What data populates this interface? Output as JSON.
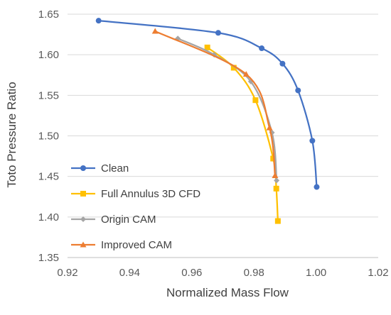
{
  "chart_data": {
    "type": "line",
    "title": "",
    "xlabel": "Normalized Mass Flow",
    "ylabel": "Toto Pressure Ratio",
    "xlim": [
      0.92,
      1.02
    ],
    "ylim": [
      1.35,
      1.65
    ],
    "x_ticks": [
      0.92,
      0.94,
      0.96,
      0.98,
      1.0,
      1.02
    ],
    "y_ticks": [
      1.35,
      1.4,
      1.45,
      1.5,
      1.55,
      1.6,
      1.65
    ],
    "x_tick_labels": [
      "0.92",
      "0.94",
      "0.96",
      "0.98",
      "1.00",
      "1.02"
    ],
    "y_tick_labels": [
      "1.35",
      "1.40",
      "1.45",
      "1.50",
      "1.55",
      "1.60",
      "1.65"
    ],
    "grid": "horizontal",
    "legend_position": "bottom-left",
    "series": [
      {
        "name": "Clean",
        "color": "#4472C4",
        "marker": "circle",
        "x": [
          0.93,
          0.9685,
          0.9825,
          0.9892,
          0.9942,
          0.9988,
          1.0002
        ],
        "y": [
          1.642,
          1.627,
          1.608,
          1.589,
          1.556,
          1.494,
          1.437
        ]
      },
      {
        "name": "Full Annulus 3D CFD",
        "color": "#FFC000",
        "marker": "square",
        "x": [
          0.965,
          0.9735,
          0.9805,
          0.9862,
          0.9872,
          0.9877
        ],
        "y": [
          1.609,
          1.584,
          1.544,
          1.472,
          1.435,
          1.395
        ]
      },
      {
        "name": "Origin CAM",
        "color": "#A5A5A5",
        "marker": "diamond",
        "x": [
          0.9555,
          0.9672,
          0.979,
          0.9858,
          0.9873
        ],
        "y": [
          1.62,
          1.6,
          1.567,
          1.504,
          1.445
        ]
      },
      {
        "name": "Improved CAM",
        "color": "#ED7D31",
        "marker": "triangle",
        "x": [
          0.9482,
          0.9775,
          0.985,
          0.9868
        ],
        "y": [
          1.629,
          1.576,
          1.51,
          1.451
        ]
      }
    ]
  }
}
